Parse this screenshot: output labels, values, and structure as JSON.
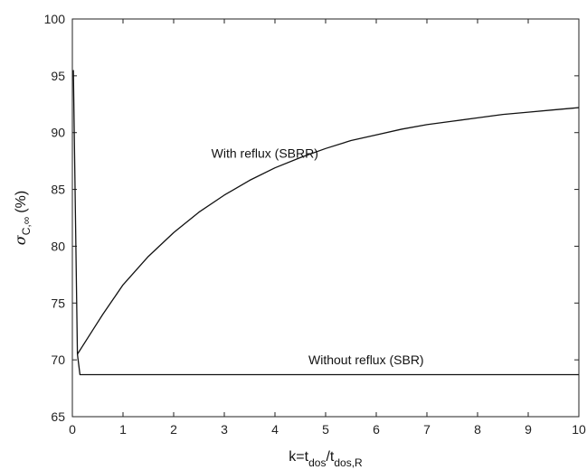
{
  "chart_data": {
    "type": "line",
    "xlim": [
      0,
      10
    ],
    "ylim": [
      65,
      100
    ],
    "x_ticks": [
      0,
      1,
      2,
      3,
      4,
      5,
      6,
      7,
      8,
      9,
      10
    ],
    "y_ticks": [
      65,
      70,
      75,
      80,
      85,
      90,
      95,
      100
    ],
    "grid": false,
    "xlabel": {
      "main": "k=t",
      "sub1": "dos",
      "slash": "/t",
      "sub2": "dos,R"
    },
    "ylabel": {
      "symbol": "σ",
      "sub": "C,∞",
      "unit": "(%)"
    },
    "series": [
      {
        "name": "With reflux (SBRR)",
        "x": [
          0.02,
          0.1,
          0.2,
          0.4,
          0.6,
          0.8,
          1.0,
          1.5,
          2.0,
          2.5,
          3.0,
          3.5,
          4.0,
          4.5,
          5.0,
          5.5,
          6.0,
          6.5,
          7.0,
          7.5,
          8.0,
          8.5,
          9.0,
          9.5,
          10.0
        ],
        "y": [
          95.5,
          70.5,
          71.2,
          72.6,
          74.0,
          75.3,
          76.6,
          79.1,
          81.2,
          83.0,
          84.5,
          85.8,
          86.9,
          87.8,
          88.6,
          89.3,
          89.8,
          90.3,
          90.7,
          91.0,
          91.3,
          91.6,
          91.8,
          92.0,
          92.2
        ]
      },
      {
        "name": "Without reflux (SBR)",
        "x": [
          0.1,
          0.15,
          1,
          2,
          3,
          4,
          5,
          6,
          7,
          8,
          9,
          10
        ],
        "y": [
          70.5,
          68.7,
          68.7,
          68.7,
          68.7,
          68.7,
          68.7,
          68.7,
          68.7,
          68.7,
          68.7,
          68.7
        ]
      }
    ],
    "annotations": [
      {
        "text": "With reflux (SBRR)",
        "x": 3.8,
        "y": 87.8
      },
      {
        "text": "Without reflux (SBR)",
        "x": 5.8,
        "y": 69.6
      }
    ]
  }
}
